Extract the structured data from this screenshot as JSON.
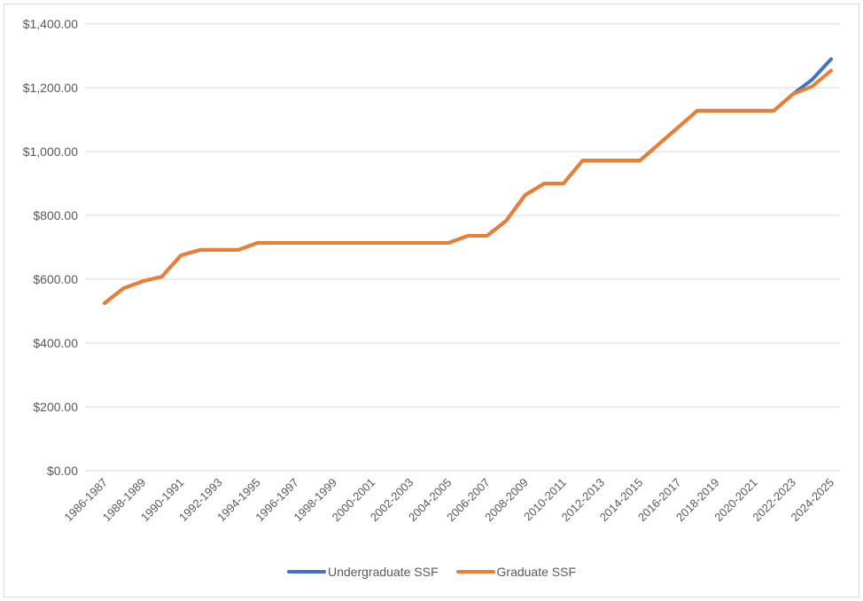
{
  "chart_data": {
    "type": "line",
    "title": "",
    "xlabel": "",
    "ylabel": "",
    "ylim": [
      0,
      1400
    ],
    "y_ticks": [
      "$0.00",
      "$200.00",
      "$400.00",
      "$600.00",
      "$800.00",
      "$1,000.00",
      "$1,200.00",
      "$1,400.00"
    ],
    "grid": true,
    "legend_position": "bottom",
    "categories": [
      "1986-1987",
      "1987-1988",
      "1988-1989",
      "1989-1990",
      "1990-1991",
      "1991-1992",
      "1992-1993",
      "1993-1994",
      "1994-1995",
      "1995-1996",
      "1996-1997",
      "1997-1998",
      "1998-1999",
      "1999-2000",
      "2000-2001",
      "2001-2002",
      "2002-2003",
      "2003-2004",
      "2004-2005",
      "2005-2006",
      "2006-2007",
      "2007-2008",
      "2008-2009",
      "2009-2010",
      "2010-2011",
      "2011-2012",
      "2012-2013",
      "2013-2014",
      "2014-2015",
      "2015-2016",
      "2016-2017",
      "2017-2018",
      "2018-2019",
      "2019-2020",
      "2020-2021",
      "2021-2022",
      "2022-2023",
      "2023-2024",
      "2024-2025"
    ],
    "visible_x_labels": [
      "1986-1987",
      "1988-1989",
      "1990-1991",
      "1992-1993",
      "1994-1995",
      "1996-1997",
      "1998-1999",
      "2000-2001",
      "2002-2003",
      "2004-2005",
      "2006-2007",
      "2008-2009",
      "2010-2011",
      "2012-2013",
      "2014-2015",
      "2016-2017",
      "2018-2019",
      "2020-2021",
      "2022-2023",
      "2024-2025"
    ],
    "series": [
      {
        "name": "Undergraduate SSF",
        "color": "#4472C4",
        "values": [
          525,
          572,
          594,
          608,
          675,
          692,
          692,
          692,
          714,
          714,
          714,
          714,
          714,
          714,
          714,
          714,
          714,
          714,
          714,
          736,
          736,
          783,
          864,
          900,
          900,
          972,
          972,
          972,
          972,
          1024,
          1076,
          1128,
          1128,
          1128,
          1128,
          1128,
          1180,
          1225,
          1290
        ]
      },
      {
        "name": "Graduate SSF",
        "color": "#ED7D31",
        "values": [
          525,
          572,
          594,
          608,
          675,
          692,
          692,
          692,
          714,
          714,
          714,
          714,
          714,
          714,
          714,
          714,
          714,
          714,
          714,
          736,
          736,
          783,
          864,
          900,
          900,
          972,
          972,
          972,
          972,
          1024,
          1076,
          1128,
          1128,
          1128,
          1128,
          1128,
          1180,
          1204,
          1254
        ]
      }
    ]
  },
  "legend": {
    "items": [
      {
        "label": "Undergraduate SSF",
        "color": "#4472C4"
      },
      {
        "label": "Graduate SSF",
        "color": "#ED7D31"
      }
    ]
  }
}
